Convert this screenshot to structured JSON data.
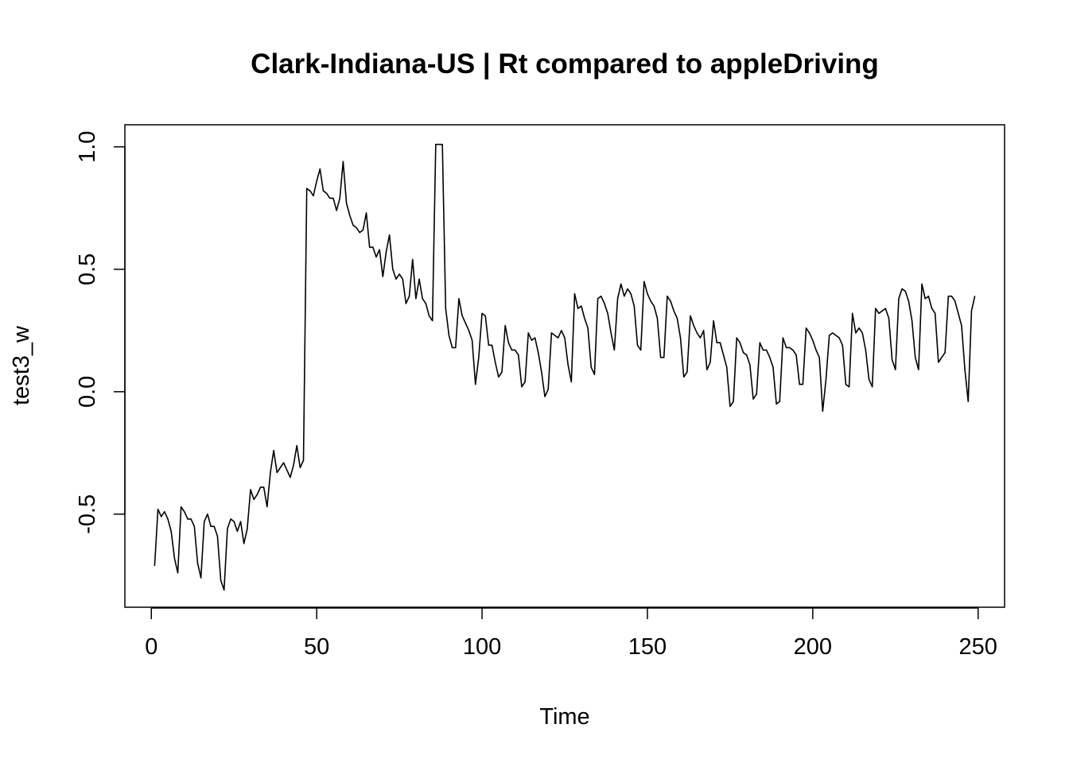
{
  "chart_data": {
    "type": "line",
    "title": "Clark-Indiana-US | Rt compared to appleDriving",
    "xlabel": "Time",
    "ylabel": "test3_w",
    "xlim": [
      -8,
      258
    ],
    "ylim": [
      -0.88,
      1.09
    ],
    "x_ticks": [
      0,
      50,
      100,
      150,
      200,
      250
    ],
    "x_tick_labels": [
      "0",
      "50",
      "100",
      "150",
      "200",
      "250"
    ],
    "y_ticks": [
      -0.5,
      0.0,
      0.5,
      1.0
    ],
    "y_tick_labels": [
      "-0.5",
      "0.0",
      "0.5",
      "1.0"
    ],
    "grid": false,
    "series": [
      {
        "color": "#000000",
        "x_start": 1,
        "values": [
          -0.71,
          -0.48,
          -0.51,
          -0.49,
          -0.52,
          -0.57,
          -0.68,
          -0.74,
          -0.47,
          -0.49,
          -0.52,
          -0.52,
          -0.55,
          -0.7,
          -0.76,
          -0.53,
          -0.5,
          -0.55,
          -0.55,
          -0.59,
          -0.77,
          -0.81,
          -0.56,
          -0.52,
          -0.53,
          -0.57,
          -0.53,
          -0.62,
          -0.56,
          -0.4,
          -0.44,
          -0.42,
          -0.39,
          -0.39,
          -0.47,
          -0.33,
          -0.24,
          -0.33,
          -0.31,
          -0.29,
          -0.32,
          -0.35,
          -0.3,
          -0.22,
          -0.31,
          -0.28,
          0.83,
          0.82,
          0.8,
          0.86,
          0.91,
          0.82,
          0.81,
          0.79,
          0.79,
          0.74,
          0.79,
          0.94,
          0.77,
          0.72,
          0.68,
          0.67,
          0.65,
          0.66,
          0.73,
          0.59,
          0.59,
          0.55,
          0.58,
          0.47,
          0.57,
          0.64,
          0.5,
          0.46,
          0.48,
          0.46,
          0.36,
          0.39,
          0.54,
          0.38,
          0.46,
          0.38,
          0.36,
          0.31,
          0.29,
          1.01,
          1.01,
          1.01,
          0.34,
          0.23,
          0.18,
          0.18,
          0.38,
          0.31,
          0.28,
          0.25,
          0.21,
          0.03,
          0.14,
          0.32,
          0.31,
          0.19,
          0.19,
          0.12,
          0.06,
          0.08,
          0.27,
          0.2,
          0.17,
          0.17,
          0.15,
          0.02,
          0.04,
          0.24,
          0.21,
          0.22,
          0.16,
          0.08,
          -0.02,
          0.01,
          0.24,
          0.23,
          0.22,
          0.25,
          0.22,
          0.11,
          0.04,
          0.4,
          0.34,
          0.35,
          0.3,
          0.26,
          0.1,
          0.07,
          0.38,
          0.39,
          0.36,
          0.32,
          0.24,
          0.17,
          0.38,
          0.44,
          0.39,
          0.42,
          0.4,
          0.35,
          0.19,
          0.17,
          0.45,
          0.4,
          0.37,
          0.35,
          0.3,
          0.14,
          0.14,
          0.39,
          0.37,
          0.33,
          0.3,
          0.22,
          0.06,
          0.08,
          0.31,
          0.27,
          0.24,
          0.22,
          0.25,
          0.09,
          0.12,
          0.29,
          0.2,
          0.2,
          0.15,
          0.1,
          -0.06,
          -0.04,
          0.22,
          0.2,
          0.16,
          0.15,
          0.11,
          -0.03,
          -0.01,
          0.2,
          0.17,
          0.17,
          0.14,
          0.1,
          -0.05,
          -0.04,
          0.22,
          0.18,
          0.18,
          0.17,
          0.15,
          0.03,
          0.03,
          0.26,
          0.24,
          0.21,
          0.17,
          0.14,
          -0.08,
          0.05,
          0.23,
          0.24,
          0.23,
          0.22,
          0.19,
          0.03,
          0.02,
          0.32,
          0.24,
          0.26,
          0.24,
          0.17,
          0.05,
          0.02,
          0.34,
          0.32,
          0.33,
          0.34,
          0.3,
          0.13,
          0.09,
          0.38,
          0.42,
          0.41,
          0.37,
          0.29,
          0.14,
          0.09,
          0.44,
          0.38,
          0.39,
          0.34,
          0.32,
          0.12,
          0.14,
          0.16,
          0.39,
          0.39,
          0.37,
          0.32,
          0.27,
          0.09,
          -0.04,
          0.33,
          0.39
        ]
      }
    ]
  }
}
